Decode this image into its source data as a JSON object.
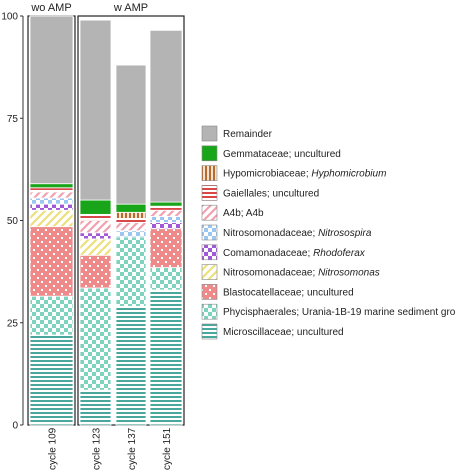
{
  "chart_data": {
    "type": "bar",
    "stacked": true,
    "ylim": [
      0,
      100
    ],
    "yticks": [
      "0",
      "25",
      "50",
      "75",
      "100"
    ],
    "panels": [
      {
        "label": "wo AMP",
        "categories": [
          "cycle 109"
        ]
      },
      {
        "label": "w AMP",
        "categories": [
          "cycle 123",
          "cycle 137",
          "cycle 151"
        ]
      }
    ],
    "categories": [
      "cycle 109",
      "cycle 123",
      "cycle 137",
      "cycle 151"
    ],
    "series": [
      {
        "name": "Microscillaceae; uncultured",
        "label_plain": "Microscillaceae; uncultured",
        "label_italic": "",
        "color": "#4aa79c",
        "pattern": "hlines",
        "values": [
          22,
          8.5,
          29,
          33
        ]
      },
      {
        "name": "Phycisphaerales; Urania-1B-19 marine sediment gro",
        "label_plain": "Phycisphaerales; Urania-1B-19 marine sediment gro",
        "label_italic": "",
        "color": "#7ed3bf",
        "pattern": "checker",
        "values": [
          9.5,
          25,
          17,
          5.5
        ]
      },
      {
        "name": "Blastocatellaceae; uncultured",
        "label_plain": "Blastocatellaceae; uncultured",
        "label_italic": "",
        "color": "#ef8a8a",
        "pattern": "dots",
        "values": [
          17,
          8,
          0,
          9.5
        ]
      },
      {
        "name": "Nitrosomonadaceae; Nitrosomonas",
        "label_plain": "Nitrosomonadaceae; ",
        "label_italic": "Nitrosomonas",
        "color": "#ece07a",
        "pattern": "diag",
        "values": [
          4,
          4,
          0,
          0
        ]
      },
      {
        "name": "Comamonadaceae; Rhodoferax",
        "label_plain": "Comamonadaceae; ",
        "label_italic": "Rhodoferax",
        "color": "#a259d6",
        "pattern": "checker",
        "values": [
          1.5,
          1.5,
          0,
          1.5
        ]
      },
      {
        "name": "Nitrosomonadaceae; Nitrosospira",
        "label_plain": "Nitrosomonadaceae; ",
        "label_italic": "Nitrosospira",
        "color": "#9cc6f2",
        "pattern": "checker",
        "values": [
          1.5,
          0,
          1.5,
          1.5
        ]
      },
      {
        "name": "A4b; A4b",
        "label_plain": "A4b; A4b",
        "label_italic": "",
        "color": "#f2a0ae",
        "pattern": "diag",
        "values": [
          1.5,
          3,
          2,
          1.5
        ]
      },
      {
        "name": "Gaiellales; uncultured",
        "label_plain": "Gaiellales; uncultured",
        "label_italic": "",
        "color": "#d94848",
        "pattern": "hlines",
        "values": [
          1,
          1.5,
          1,
          1
        ]
      },
      {
        "name": "Hypomicrobiaceae; Hyphomicrobium",
        "label_plain": "Hypomicrobiaceae; ",
        "label_italic": "Hyphomicrobium",
        "color": "#b86a2f",
        "pattern": "vlines",
        "values": [
          0,
          0,
          1.5,
          0
        ]
      },
      {
        "name": "Gemmataceae; uncultured",
        "label_plain": "Gemmataceae; uncultured",
        "label_italic": "",
        "color": "#19a519",
        "pattern": "solid",
        "values": [
          1,
          3.5,
          2,
          1
        ]
      },
      {
        "name": "Remainder",
        "label_plain": "Remainder",
        "label_italic": "",
        "color": "#b4b4b4",
        "pattern": "solid",
        "values": [
          41,
          44,
          34,
          42
        ]
      }
    ]
  }
}
